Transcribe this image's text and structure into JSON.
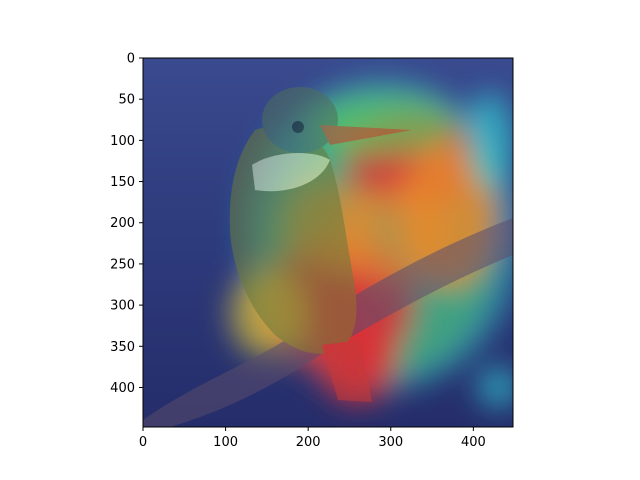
{
  "chart_data": {
    "type": "heatmap",
    "xlim": [
      0,
      448
    ],
    "ylim": [
      448,
      0
    ],
    "y_inverted": true,
    "grid": false,
    "title": "",
    "xlabel": "",
    "ylabel": "",
    "xticks": [
      0,
      100,
      200,
      300,
      400
    ],
    "yticks": [
      0,
      50,
      100,
      150,
      200,
      250,
      300,
      350,
      400
    ],
    "colormap": "jet",
    "background": "photo of a kingfisher bird perched on a branch",
    "activation_regions": [
      {
        "x": 330,
        "y": 125,
        "rx": 85,
        "ry": 60,
        "level": 0.95
      },
      {
        "x": 235,
        "y": 300,
        "rx": 95,
        "ry": 80,
        "level": 0.95
      },
      {
        "x": 370,
        "y": 190,
        "rx": 60,
        "ry": 90,
        "level": 0.85
      },
      {
        "x": 300,
        "y": 215,
        "rx": 70,
        "ry": 60,
        "level": 0.8
      },
      {
        "x": 230,
        "y": 205,
        "rx": 55,
        "ry": 55,
        "level": 0.75
      },
      {
        "x": 260,
        "y": 365,
        "rx": 50,
        "ry": 55,
        "level": 0.9
      },
      {
        "x": 150,
        "y": 310,
        "rx": 45,
        "ry": 55,
        "level": 0.6
      },
      {
        "x": 290,
        "y": 80,
        "rx": 90,
        "ry": 40,
        "level": 0.55
      },
      {
        "x": 420,
        "y": 100,
        "rx": 30,
        "ry": 60,
        "level": 0.35
      },
      {
        "x": 430,
        "y": 400,
        "rx": 25,
        "ry": 25,
        "level": 0.3
      }
    ]
  },
  "colors": {
    "background_base": "#2a3375",
    "cool": "#2a3ab0",
    "cyan": "#2ed1d6",
    "green": "#5bd15a",
    "yellow": "#e6d035",
    "orange": "#e88a2c",
    "red": "#d8323a"
  }
}
